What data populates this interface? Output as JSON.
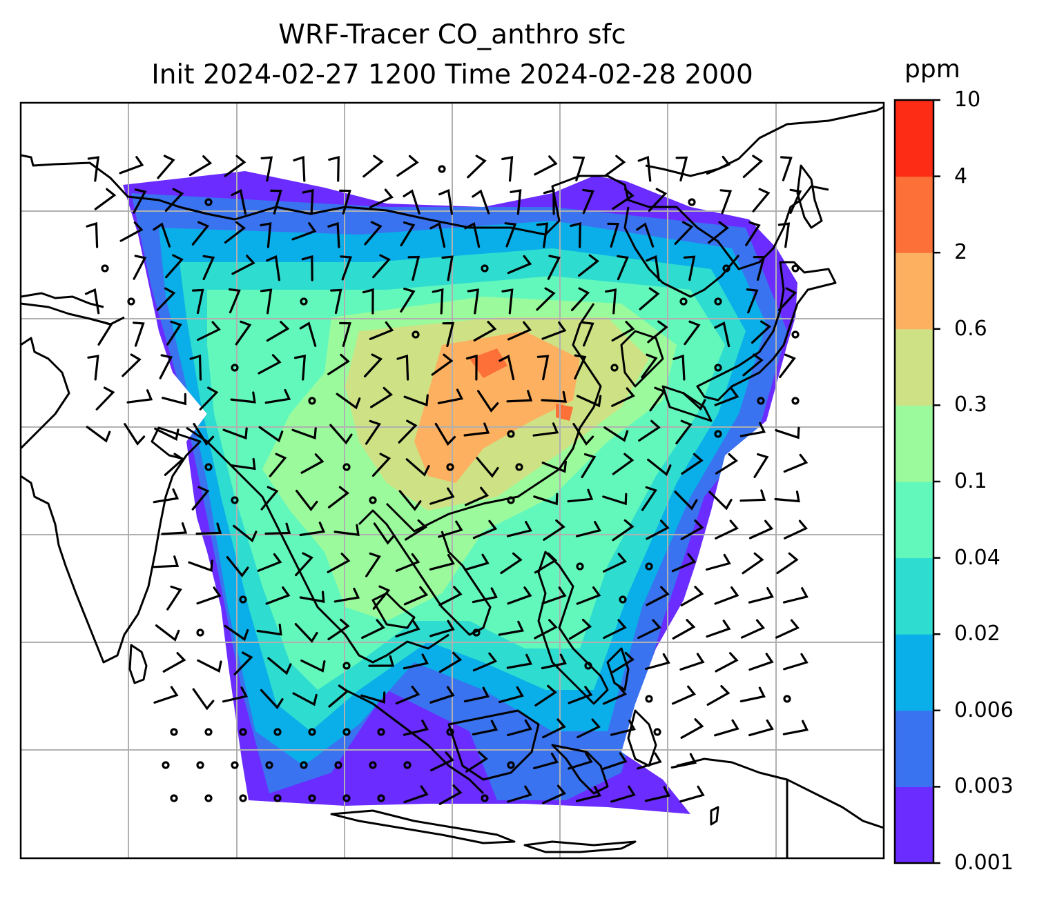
{
  "title": {
    "line1": "WRF-Tracer CO_anthro sfc",
    "line2": "Init 2024-02-27 1200 Time 2024-02-28 2000"
  },
  "colorbar": {
    "unit": "ppm",
    "levels": [
      "0.001",
      "0.003",
      "0.006",
      "0.02",
      "0.04",
      "0.1",
      "0.3",
      "0.6",
      "2",
      "4",
      "10"
    ],
    "colors": [
      "#6a2cff",
      "#3a73f0",
      "#0aaee8",
      "#2edcd0",
      "#62f8bc",
      "#9bfb9c",
      "#cfe185",
      "#fdb05f",
      "#fd7038",
      "#fd2c14"
    ]
  },
  "map": {
    "gridlines": "on",
    "overlay": "wind-barbs",
    "background_color": "#ffffff"
  }
}
